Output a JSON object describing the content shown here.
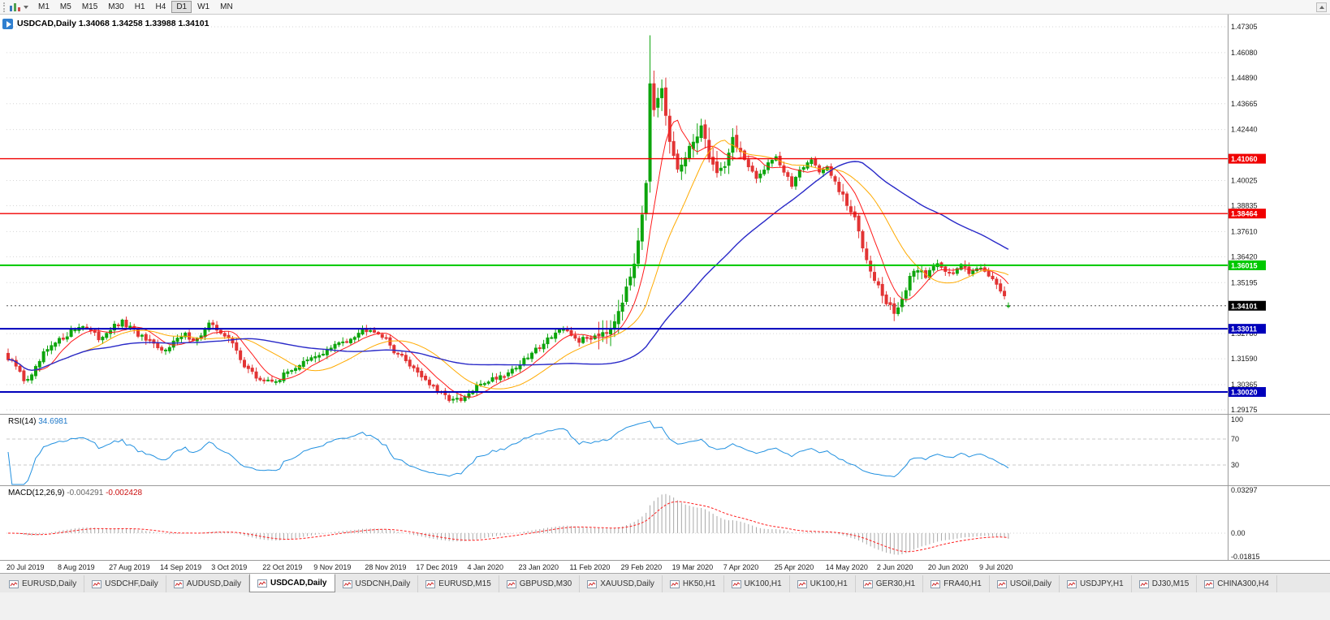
{
  "toolbar": {
    "timeframes": [
      "M1",
      "M5",
      "M15",
      "M30",
      "H1",
      "H4",
      "D1",
      "W1",
      "MN"
    ],
    "active_timeframe": "D1"
  },
  "chart": {
    "title_text": "USDCAD,Daily 1.34068 1.34258 1.33988 1.34101"
  },
  "panels": {
    "rsi": {
      "label": "RSI(14)",
      "value": "34.6981",
      "levels": [
        "100",
        "70",
        "30"
      ],
      "dashed_levels": [
        70,
        30
      ],
      "line_color": "#2090e0"
    },
    "macd": {
      "label": "MACD(12,26,9)",
      "value_main": "-0.004291",
      "value_signal": "-0.002428",
      "axis_labels": [
        "0.03297",
        "0.00",
        "-0.01815"
      ],
      "hist_color": "#a8a8a8",
      "signal_color": "#ff2020"
    }
  },
  "price_axis": {
    "top_label": "1.47305",
    "bottom_label": "1.29175",
    "labels": [
      "1.47305",
      "1.46080",
      "1.44890",
      "1.43665",
      "1.42440",
      "1.40025",
      "1.38835",
      "1.37610",
      "1.36420",
      "1.35195",
      "1.32780",
      "1.31590",
      "1.30365",
      "1.29175"
    ]
  },
  "hlines": [
    {
      "price": "1.41060",
      "color": "#f00000"
    },
    {
      "price": "1.38464",
      "color": "#f00000"
    },
    {
      "price": "1.36015",
      "color": "#00c800"
    },
    {
      "price": "1.33011",
      "color": "#0000bb"
    },
    {
      "price": "1.30020",
      "color": "#0000bb"
    }
  ],
  "current_price": {
    "value": "1.34101",
    "badge_color": "#000000"
  },
  "dates": [
    "20 Jul 2019",
    "8 Aug 2019",
    "27 Aug 2019",
    "14 Sep 2019",
    "3 Oct 2019",
    "22 Oct 2019",
    "9 Nov 2019",
    "28 Nov 2019",
    "17 Dec 2019",
    "4 Jan 2020",
    "23 Jan 2020",
    "11 Feb 2020",
    "29 Feb 2020",
    "19 Mar 2020",
    "7 Apr 2020",
    "25 Apr 2020",
    "14 May 2020",
    "2 Jun 2020",
    "20 Jun 2020",
    "9 Jul 2020"
  ],
  "chart_data": {
    "type": "candlestick",
    "symbol": "USDCAD",
    "period": "Daily",
    "open": 1.34068,
    "high": 1.34258,
    "low": 1.33988,
    "close": 1.34101,
    "num_candles": 255,
    "date_tick_step": 13,
    "up_color": "#0da50d",
    "down_color": "#e23434",
    "close_anchors": [
      [
        0,
        1.3155
      ],
      [
        2,
        1.3125
      ],
      [
        4,
        1.306
      ],
      [
        6,
        1.3075
      ],
      [
        9,
        1.318
      ],
      [
        12,
        1.323
      ],
      [
        16,
        1.329
      ],
      [
        19,
        1.332
      ],
      [
        23,
        1.3255
      ],
      [
        26,
        1.33
      ],
      [
        29,
        1.333
      ],
      [
        32,
        1.329
      ],
      [
        35,
        1.3245
      ],
      [
        39,
        1.3195
      ],
      [
        42,
        1.324
      ],
      [
        45,
        1.327
      ],
      [
        48,
        1.325
      ],
      [
        51,
        1.332
      ],
      [
        54,
        1.329
      ],
      [
        57,
        1.323
      ],
      [
        60,
        1.313
      ],
      [
        63,
        1.307
      ],
      [
        66,
        1.305
      ],
      [
        69,
        1.3065
      ],
      [
        72,
        1.311
      ],
      [
        75,
        1.314
      ],
      [
        78,
        1.3165
      ],
      [
        81,
        1.32
      ],
      [
        84,
        1.323
      ],
      [
        87,
        1.326
      ],
      [
        90,
        1.3295
      ],
      [
        92,
        1.3305
      ],
      [
        95,
        1.327
      ],
      [
        98,
        1.32
      ],
      [
        101,
        1.315
      ],
      [
        104,
        1.31
      ],
      [
        107,
        1.304
      ],
      [
        110,
        1.299
      ],
      [
        113,
        1.2965
      ],
      [
        115,
        1.2958
      ],
      [
        117,
        1.299
      ],
      [
        120,
        1.304
      ],
      [
        123,
        1.3065
      ],
      [
        126,
        1.3085
      ],
      [
        129,
        1.312
      ],
      [
        132,
        1.3165
      ],
      [
        135,
        1.322
      ],
      [
        138,
        1.327
      ],
      [
        140,
        1.3295
      ],
      [
        143,
        1.327
      ],
      [
        145,
        1.3245
      ],
      [
        148,
        1.326
      ],
      [
        151,
        1.329
      ],
      [
        153,
        1.3305
      ],
      [
        155,
        1.3395
      ],
      [
        157,
        1.348
      ],
      [
        159,
        1.362
      ],
      [
        161,
        1.385
      ],
      [
        162,
        1.4
      ],
      [
        163,
        1.445
      ],
      [
        164,
        1.432
      ],
      [
        166,
        1.443
      ],
      [
        168,
        1.418
      ],
      [
        170,
        1.406
      ],
      [
        172,
        1.41
      ],
      [
        174,
        1.419
      ],
      [
        176,
        1.426
      ],
      [
        178,
        1.412
      ],
      [
        180,
        1.404
      ],
      [
        182,
        1.408
      ],
      [
        184,
        1.42
      ],
      [
        186,
        1.414
      ],
      [
        188,
        1.406
      ],
      [
        190,
        1.401
      ],
      [
        193,
        1.409
      ],
      [
        195,
        1.412
      ],
      [
        197,
        1.404
      ],
      [
        199,
        1.398
      ],
      [
        201,
        1.406
      ],
      [
        204,
        1.41
      ],
      [
        206,
        1.405
      ],
      [
        208,
        1.406
      ],
      [
        210,
        1.399
      ],
      [
        212,
        1.392
      ],
      [
        215,
        1.382
      ],
      [
        218,
        1.364
      ],
      [
        221,
        1.35
      ],
      [
        223,
        1.342
      ],
      [
        225,
        1.338
      ],
      [
        227,
        1.344
      ],
      [
        229,
        1.353
      ],
      [
        231,
        1.359
      ],
      [
        233,
        1.355
      ],
      [
        236,
        1.362
      ],
      [
        238,
        1.358
      ],
      [
        240,
        1.3555
      ],
      [
        242,
        1.3605
      ],
      [
        244,
        1.3575
      ],
      [
        246,
        1.3595
      ],
      [
        248,
        1.357
      ],
      [
        250,
        1.3545
      ],
      [
        252,
        1.349
      ],
      [
        253,
        1.3455
      ],
      [
        254,
        1.34101
      ]
    ],
    "extremes": {
      "high": [
        163,
        1.469
      ],
      "low": [
        114,
        1.2952
      ]
    },
    "volatility_zones": [
      [
        150,
        186,
        2.8
      ],
      [
        210,
        232,
        1.7
      ]
    ],
    "moving_averages": [
      {
        "period": 8,
        "color": "#ff1a1a",
        "width": 1
      },
      {
        "period": 20,
        "color": "#ffaa00",
        "width": 1
      },
      {
        "period": 55,
        "color": "#2929c8",
        "width": 1.4
      }
    ],
    "rsi_period": 14,
    "macd_params": [
      12,
      26,
      9
    ],
    "horizontal_lines": [
      "1.41060",
      "1.38464",
      "1.36015",
      "1.33011",
      "1.30020"
    ],
    "current_price": "1.34101"
  },
  "tabs": [
    {
      "label": "EURUSD,Daily"
    },
    {
      "label": "USDCHF,Daily"
    },
    {
      "label": "AUDUSD,Daily"
    },
    {
      "label": "USDCAD,Daily",
      "active": true
    },
    {
      "label": "USDCNH,Daily"
    },
    {
      "label": "EURUSD,M15"
    },
    {
      "label": "GBPUSD,M30"
    },
    {
      "label": "XAUUSD,Daily"
    },
    {
      "label": "HK50,H1"
    },
    {
      "label": "UK100,H1"
    },
    {
      "label": "UK100,H1"
    },
    {
      "label": "GER30,H1"
    },
    {
      "label": "FRA40,H1"
    },
    {
      "label": "USOil,Daily"
    },
    {
      "label": "USDJPY,H1"
    },
    {
      "label": "DJ30,M15"
    },
    {
      "label": "CHINA300,H4"
    }
  ]
}
